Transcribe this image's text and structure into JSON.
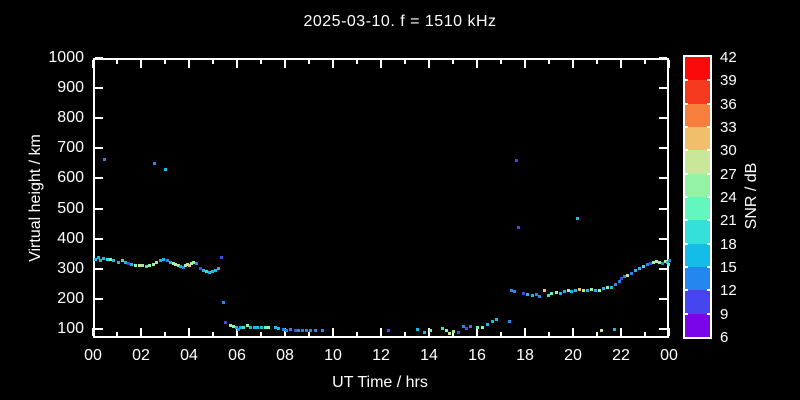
{
  "style_colors": {
    "background": "#000000",
    "frame": "#ffffff",
    "text": "#ffffff"
  },
  "chart_data": {
    "type": "scatter",
    "title": "2025-03-10. f = 1510 kHz",
    "xlabel": "UT Time / hrs",
    "ylabel": "Virtual height / km",
    "x_range_hours": [
      0,
      24
    ],
    "y_range_km": [
      70,
      1000
    ],
    "grid": "off",
    "x_major_tick_labels": [
      "00",
      "02",
      "04",
      "06",
      "08",
      "10",
      "12",
      "14",
      "16",
      "18",
      "20",
      "22",
      "00"
    ],
    "x_minor_tick_step_hours": 1,
    "y_tick_km": [
      100,
      200,
      300,
      400,
      500,
      600,
      700,
      800,
      900,
      1000
    ],
    "colorbar": {
      "label": "SNR / dB",
      "tick_values": [
        6,
        9,
        12,
        15,
        18,
        21,
        24,
        27,
        30,
        33,
        36,
        39,
        42
      ],
      "colors_low_to_high": [
        "#7A05E8",
        "#4645F0",
        "#2387EF",
        "#14BCE8",
        "#35E0DA",
        "#63F7BE",
        "#93F2A4",
        "#C9E79B",
        "#EFBF6B",
        "#F77F3E",
        "#F4391F",
        "#FA0A0A"
      ]
    },
    "points_hour_km_snr": [
      [
        0.08,
        332,
        16
      ],
      [
        0.2,
        338,
        16
      ],
      [
        0.3,
        330,
        16
      ],
      [
        0.42,
        335,
        16
      ],
      [
        0.58,
        331,
        19
      ],
      [
        0.72,
        334,
        25
      ],
      [
        0.85,
        328,
        16
      ],
      [
        1.05,
        322,
        16
      ],
      [
        1.2,
        328,
        19
      ],
      [
        1.33,
        324,
        16
      ],
      [
        1.45,
        318,
        10
      ],
      [
        1.6,
        315,
        16
      ],
      [
        1.75,
        313,
        25
      ],
      [
        1.9,
        311,
        28
      ],
      [
        2.05,
        314,
        25
      ],
      [
        2.2,
        310,
        19
      ],
      [
        2.35,
        313,
        25
      ],
      [
        2.5,
        317,
        25
      ],
      [
        2.62,
        321,
        25
      ],
      [
        2.78,
        328,
        16
      ],
      [
        2.92,
        333,
        16
      ],
      [
        3.08,
        328,
        13
      ],
      [
        3.2,
        322,
        16
      ],
      [
        3.33,
        318,
        25
      ],
      [
        3.42,
        315,
        28
      ],
      [
        3.55,
        311,
        25
      ],
      [
        3.62,
        308,
        16
      ],
      [
        3.75,
        305,
        13
      ],
      [
        3.83,
        311,
        25
      ],
      [
        3.92,
        316,
        28
      ],
      [
        4.0,
        313,
        31
      ],
      [
        4.08,
        318,
        25
      ],
      [
        4.17,
        322,
        25
      ],
      [
        4.3,
        320,
        13
      ],
      [
        4.45,
        303,
        10
      ],
      [
        4.58,
        297,
        16
      ],
      [
        4.7,
        293,
        19
      ],
      [
        4.83,
        290,
        16
      ],
      [
        4.95,
        292,
        16
      ],
      [
        5.08,
        296,
        16
      ],
      [
        5.2,
        302,
        16
      ],
      [
        5.33,
        340,
        10
      ],
      [
        5.42,
        190,
        13
      ],
      [
        5.5,
        122,
        10
      ],
      [
        5.7,
        112,
        25
      ],
      [
        5.82,
        109,
        25
      ],
      [
        5.95,
        105,
        16
      ],
      [
        6.03,
        100,
        13
      ],
      [
        6.12,
        105,
        16
      ],
      [
        6.27,
        108,
        19
      ],
      [
        6.4,
        112,
        25
      ],
      [
        6.55,
        108,
        16
      ],
      [
        6.7,
        105,
        16
      ],
      [
        6.85,
        105,
        16
      ],
      [
        7.0,
        105,
        16
      ],
      [
        7.15,
        107,
        22
      ],
      [
        7.3,
        105,
        25
      ],
      [
        7.6,
        105,
        16
      ],
      [
        7.72,
        104,
        16
      ],
      [
        7.9,
        100,
        13
      ],
      [
        8.05,
        98,
        13
      ],
      [
        8.2,
        99,
        13
      ],
      [
        8.42,
        95,
        10
      ],
      [
        8.55,
        97,
        13
      ],
      [
        8.72,
        95,
        13
      ],
      [
        8.88,
        97,
        13
      ],
      [
        9.05,
        97,
        13
      ],
      [
        9.25,
        95,
        13
      ],
      [
        9.55,
        97,
        13
      ],
      [
        12.3,
        95,
        10
      ],
      [
        13.5,
        100,
        16
      ],
      [
        13.8,
        90,
        16
      ],
      [
        14.05,
        95,
        22
      ],
      [
        14.55,
        102,
        19
      ],
      [
        14.7,
        97,
        25
      ],
      [
        14.85,
        88,
        28
      ],
      [
        15.0,
        93,
        25
      ],
      [
        15.2,
        90,
        10
      ],
      [
        15.4,
        110,
        13
      ],
      [
        15.55,
        103,
        10
      ],
      [
        15.7,
        110,
        13
      ],
      [
        16.0,
        105,
        22
      ],
      [
        16.2,
        107,
        25
      ],
      [
        16.4,
        115,
        16
      ],
      [
        16.62,
        125,
        16
      ],
      [
        16.8,
        133,
        16
      ],
      [
        17.35,
        125,
        13
      ],
      [
        0.45,
        665,
        13
      ],
      [
        2.55,
        650,
        13
      ],
      [
        3.0,
        632,
        16
      ],
      [
        17.62,
        660,
        10
      ],
      [
        17.72,
        440,
        10
      ],
      [
        20.17,
        470,
        16
      ],
      [
        17.4,
        230,
        13
      ],
      [
        17.55,
        225,
        13
      ],
      [
        17.92,
        219,
        10
      ],
      [
        18.1,
        215,
        16
      ],
      [
        18.28,
        213,
        16
      ],
      [
        18.45,
        216,
        13
      ],
      [
        18.6,
        211,
        13
      ],
      [
        18.8,
        231,
        31
      ],
      [
        18.95,
        214,
        19
      ],
      [
        19.1,
        218,
        22
      ],
      [
        19.3,
        222,
        25
      ],
      [
        19.45,
        219,
        16
      ],
      [
        19.62,
        227,
        16
      ],
      [
        19.78,
        230,
        25
      ],
      [
        19.92,
        225,
        16
      ],
      [
        20.08,
        230,
        16
      ],
      [
        20.25,
        233,
        31
      ],
      [
        20.42,
        228,
        25
      ],
      [
        20.58,
        231,
        16
      ],
      [
        20.75,
        234,
        25
      ],
      [
        20.92,
        228,
        16
      ],
      [
        21.08,
        231,
        25
      ],
      [
        21.25,
        235,
        16
      ],
      [
        21.42,
        238,
        25
      ],
      [
        21.58,
        241,
        16
      ],
      [
        21.75,
        248,
        13
      ],
      [
        21.9,
        258,
        13
      ],
      [
        22.02,
        268,
        10
      ],
      [
        22.12,
        275,
        13
      ],
      [
        22.25,
        280,
        28
      ],
      [
        22.4,
        285,
        13
      ],
      [
        22.58,
        295,
        16
      ],
      [
        22.75,
        302,
        16
      ],
      [
        22.92,
        308,
        19
      ],
      [
        23.08,
        315,
        13
      ],
      [
        23.2,
        320,
        10
      ],
      [
        23.33,
        322,
        25
      ],
      [
        23.45,
        326,
        28
      ],
      [
        23.58,
        323,
        25
      ],
      [
        23.7,
        320,
        13
      ],
      [
        23.82,
        326,
        28
      ],
      [
        23.92,
        322,
        16
      ],
      [
        23.97,
        315,
        22
      ],
      [
        24.0,
        330,
        13
      ],
      [
        21.17,
        97,
        28
      ],
      [
        21.7,
        100,
        16
      ]
    ]
  }
}
